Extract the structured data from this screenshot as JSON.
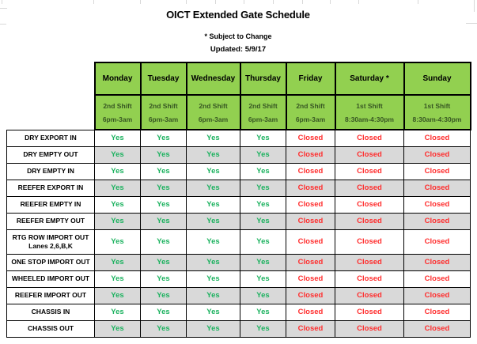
{
  "header": {
    "title": "OICT Extended Gate Schedule",
    "subtitle": "* Subject to Change",
    "updated": "Updated: 5/9/17"
  },
  "schedule": {
    "columns": [
      {
        "day": "Monday",
        "shift": "2nd Shift",
        "hours": "6pm-3am"
      },
      {
        "day": "Tuesday",
        "shift": "2nd Shift",
        "hours": "6pm-3am"
      },
      {
        "day": "Wednesday",
        "shift": "2nd Shift",
        "hours": "6pm-3am"
      },
      {
        "day": "Thursday",
        "shift": "2nd Shift",
        "hours": "6pm-3am"
      },
      {
        "day": "Friday",
        "shift": "2nd Shift",
        "hours": "6pm-3am"
      },
      {
        "day": "Saturday *",
        "shift": "1st Shift",
        "hours": "8:30am-4:30pm"
      },
      {
        "day": "Sunday",
        "shift": "1st Shift",
        "hours": "8:30am-4:30pm"
      }
    ],
    "rows": [
      {
        "label": "DRY EXPORT IN",
        "sublabel": "",
        "values": [
          "Yes",
          "Yes",
          "Yes",
          "Yes",
          "Closed",
          "Closed",
          "Closed"
        ]
      },
      {
        "label": "DRY EMPTY OUT",
        "sublabel": "",
        "values": [
          "Yes",
          "Yes",
          "Yes",
          "Yes",
          "Closed",
          "Closed",
          "Closed"
        ]
      },
      {
        "label": "DRY EMPTY IN",
        "sublabel": "",
        "values": [
          "Yes",
          "Yes",
          "Yes",
          "Yes",
          "Closed",
          "Closed",
          "Closed"
        ]
      },
      {
        "label": "REEFER EXPORT IN",
        "sublabel": "",
        "values": [
          "Yes",
          "Yes",
          "Yes",
          "Yes",
          "Closed",
          "Closed",
          "Closed"
        ]
      },
      {
        "label": "REEFER EMPTY IN",
        "sublabel": "",
        "values": [
          "Yes",
          "Yes",
          "Yes",
          "Yes",
          "Closed",
          "Closed",
          "Closed"
        ]
      },
      {
        "label": "REEFER EMPTY OUT",
        "sublabel": "",
        "values": [
          "Yes",
          "Yes",
          "Yes",
          "Yes",
          "Closed",
          "Closed",
          "Closed"
        ]
      },
      {
        "label": "RTG ROW IMPORT OUT",
        "sublabel": "Lanes 2,6,B,K",
        "values": [
          "Yes",
          "Yes",
          "Yes",
          "Yes",
          "Closed",
          "Closed",
          "Closed"
        ]
      },
      {
        "label": "ONE STOP IMPORT OUT",
        "sublabel": "",
        "values": [
          "Yes",
          "Yes",
          "Yes",
          "Yes",
          "Closed",
          "Closed",
          "Closed"
        ]
      },
      {
        "label": "WHEELED IMPORT OUT",
        "sublabel": "",
        "values": [
          "Yes",
          "Yes",
          "Yes",
          "Yes",
          "Closed",
          "Closed",
          "Closed"
        ]
      },
      {
        "label": "REEFER IMPORT OUT",
        "sublabel": "",
        "values": [
          "Yes",
          "Yes",
          "Yes",
          "Yes",
          "Closed",
          "Closed",
          "Closed"
        ]
      },
      {
        "label": "CHASSIS IN",
        "sublabel": "",
        "values": [
          "Yes",
          "Yes",
          "Yes",
          "Yes",
          "Closed",
          "Closed",
          "Closed"
        ]
      },
      {
        "label": "CHASSIS OUT",
        "sublabel": "",
        "values": [
          "Yes",
          "Yes",
          "Yes",
          "Yes",
          "Closed",
          "Closed",
          "Closed"
        ]
      }
    ]
  },
  "colors": {
    "header_green": "#92D050",
    "shift_text_dark_green": "#375623",
    "yes_green": "#1CB25F",
    "closed_red": "#FF2D2D",
    "alt_row_gray": "#D9D9D9",
    "border_black": "#000000"
  }
}
